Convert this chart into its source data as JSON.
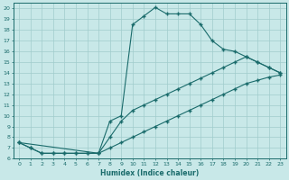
{
  "xlabel": "Humidex (Indice chaleur)",
  "bg_color": "#c8e8e8",
  "grid_color": "#a8d0d0",
  "line_color": "#1a6b6b",
  "xlim": [
    -0.5,
    23.5
  ],
  "ylim": [
    6,
    20.5
  ],
  "yticks": [
    6,
    7,
    8,
    9,
    10,
    11,
    12,
    13,
    14,
    15,
    16,
    17,
    18,
    19,
    20
  ],
  "xticks": [
    0,
    1,
    2,
    3,
    4,
    5,
    6,
    7,
    8,
    9,
    10,
    11,
    12,
    13,
    14,
    15,
    16,
    17,
    18,
    19,
    20,
    21,
    22,
    23
  ],
  "line1_x": [
    0,
    1,
    2,
    3,
    4,
    5,
    6,
    7,
    8,
    9,
    10,
    11,
    12,
    13,
    14,
    15,
    16,
    17,
    18,
    19,
    20,
    21,
    22,
    23
  ],
  "line1_y": [
    7.5,
    7.0,
    6.5,
    6.5,
    6.5,
    6.5,
    6.5,
    6.5,
    9.5,
    10.0,
    18.5,
    19.3,
    20.1,
    19.5,
    19.5,
    19.5,
    18.5,
    17.0,
    16.2,
    16.0,
    15.5,
    15.0,
    14.5,
    14.0
  ],
  "line2_x": [
    0,
    7,
    8,
    9,
    10,
    11,
    12,
    13,
    14,
    15,
    16,
    17,
    18,
    19,
    20,
    21,
    22,
    23
  ],
  "line2_y": [
    7.5,
    6.5,
    8.0,
    9.5,
    10.5,
    11.0,
    11.5,
    12.0,
    12.5,
    13.0,
    13.5,
    14.0,
    14.5,
    15.0,
    15.5,
    15.0,
    14.5,
    14.0
  ],
  "line3_x": [
    0,
    1,
    2,
    3,
    4,
    5,
    6,
    7,
    8,
    9,
    10,
    11,
    12,
    13,
    14,
    15,
    16,
    17,
    18,
    19,
    20,
    21,
    22,
    23
  ],
  "line3_y": [
    7.5,
    7.0,
    6.5,
    6.5,
    6.5,
    6.5,
    6.5,
    6.5,
    7.0,
    7.5,
    8.0,
    8.5,
    9.0,
    9.5,
    10.0,
    10.5,
    11.0,
    11.5,
    12.0,
    12.5,
    13.0,
    13.3,
    13.6,
    13.8
  ]
}
